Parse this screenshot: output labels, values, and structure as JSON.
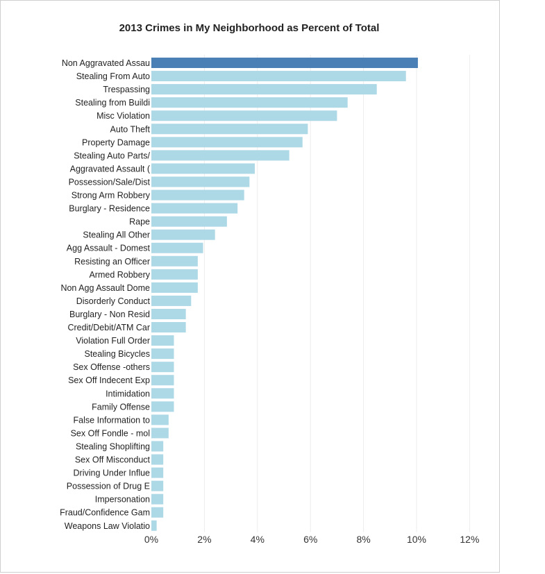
{
  "chart_data": {
    "type": "bar",
    "orientation": "horizontal",
    "title": "2013 Crimes in My Neighborhood as Percent of Total",
    "xlabel": "",
    "ylabel": "",
    "xlim": [
      0,
      12
    ],
    "ticks": [
      "0%",
      "2%",
      "4%",
      "6%",
      "8%",
      "10%",
      "12%"
    ],
    "tick_values": [
      0,
      2,
      4,
      6,
      8,
      10,
      12
    ],
    "grid": "vertical",
    "highlight_color": "#4a7fb5",
    "bar_color": "#add8e6",
    "categories": [
      "Non Aggravated Assau",
      "Stealing From Auto",
      "Trespassing",
      "Stealing from Buildi",
      "Misc Violation",
      "Auto Theft",
      "Property Damage",
      "Stealing Auto Parts/",
      "Aggravated Assault (",
      "Possession/Sale/Dist",
      "Strong Arm Robbery",
      "Burglary - Residence",
      "Rape",
      "Stealing All Other",
      "Agg Assault - Domest",
      "Resisting an Officer",
      "Armed Robbery",
      "Non Agg Assault Dome",
      "Disorderly Conduct",
      "Burglary - Non Resid",
      "Credit/Debit/ATM Car",
      "Violation Full Order",
      "Stealing Bicycles",
      "Sex Offense -others",
      "Sex Off Indecent Exp",
      "Intimidation",
      "Family Offense",
      "False Information to",
      "Sex Off Fondle - mol",
      "Stealing Shoplifting",
      "Sex Off Misconduct",
      "Driving Under Influe",
      "Possession of Drug E",
      "Impersonation",
      "Fraud/Confidence Gam",
      "Weapons Law Violatio"
    ],
    "values": [
      10.05,
      9.6,
      8.5,
      7.4,
      7.0,
      5.9,
      5.7,
      5.2,
      3.9,
      3.7,
      3.5,
      3.25,
      2.85,
      2.4,
      1.95,
      1.75,
      1.75,
      1.75,
      1.5,
      1.3,
      1.3,
      0.85,
      0.85,
      0.85,
      0.85,
      0.85,
      0.85,
      0.65,
      0.65,
      0.45,
      0.45,
      0.45,
      0.45,
      0.45,
      0.45,
      0.2
    ]
  }
}
